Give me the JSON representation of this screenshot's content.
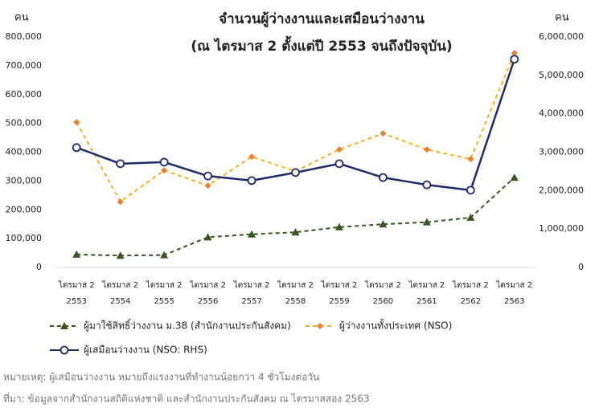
{
  "chart_data": {
    "type": "line",
    "title": "จำนวนผู้ว่างงานและเสมือนว่างงาน",
    "subtitle": "(ณ ไตรมาส 2 ตั้งแต่ปี 2553 จนถึงปัจจุบัน)",
    "y_label": "คน",
    "y2_label": "คน",
    "categories": [
      [
        "ไตรมาส 2",
        "2553"
      ],
      [
        "ไตรมาส 2",
        "2554"
      ],
      [
        "ไตรมาส 2",
        "2555"
      ],
      [
        "ไตรมาส 2",
        "2556"
      ],
      [
        "ไตรมาส 2",
        "2557"
      ],
      [
        "ไตรมาส 2",
        "2558"
      ],
      [
        "ไตรมาส 2",
        "2559"
      ],
      [
        "ไตรมาส 2",
        "2560"
      ],
      [
        "ไตรมาส 2",
        "2561"
      ],
      [
        "ไตรมาส 2",
        "2562"
      ],
      [
        "ไตรมาส 2",
        "2563"
      ]
    ],
    "ylim": [
      0,
      800000
    ],
    "yticks": [
      0,
      {
        "value": 100000,
        "label": "100,000"
      },
      {
        "value": 200000,
        "label": "200,000"
      },
      {
        "value": 300000,
        "label": "300,000"
      },
      {
        "value": 400000,
        "label": "400,000"
      },
      {
        "value": 500000,
        "label": "500,000"
      },
      {
        "value": 600000,
        "label": "600,000"
      },
      {
        "value": 700000,
        "label": "700,000"
      },
      {
        "value": 800000,
        "label": "800,000"
      }
    ],
    "y2lim": [
      0,
      6000000
    ],
    "y2ticks": [
      0,
      {
        "value": 1000000,
        "label": "1,000,000"
      },
      {
        "value": 2000000,
        "label": "2,000,000"
      },
      {
        "value": 3000000,
        "label": "3,000,000"
      },
      {
        "value": 4000000,
        "label": "4,000,000"
      },
      {
        "value": 5000000,
        "label": "5,000,000"
      },
      {
        "value": 6000000,
        "label": "6,000,000"
      }
    ],
    "grid": false,
    "series": [
      {
        "name": "ผู้มาใช้สิทธิ์ว่างงาน ม.38 (สำนักงานประกันสังคม)",
        "color": "#375623",
        "marker": "triangle",
        "dashed": true,
        "axis": "y",
        "values": [
          45000,
          41000,
          43000,
          105000,
          115000,
          122000,
          140000,
          150000,
          157000,
          173000,
          312000
        ]
      },
      {
        "name": "ผู้ว่างงานทั้งประเทศ (NSO)",
        "color": "#f4b228",
        "marker": "diamond",
        "marker_color": "#ed7d31",
        "dashed": true,
        "axis": "y",
        "values": [
          504000,
          228000,
          337000,
          284000,
          384000,
          334000,
          409000,
          465000,
          409000,
          376000,
          744000
        ]
      },
      {
        "name": "ผู้เสมือนว่างงาน (NSO: RHS)",
        "color": "#1f2a6b",
        "marker": "circle",
        "dashed": false,
        "axis": "y2",
        "values": [
          3120000,
          2700000,
          2740000,
          2380000,
          2260000,
          2470000,
          2700000,
          2340000,
          2150000,
          2010000,
          5420000
        ]
      }
    ],
    "notes": [
      "หมายเหตุ: ผู้เสมือนว่างงาน หมายถึงแรงงานที่ทำงานน้อยกว่า 4 ชั่วโมงต่อวัน",
      "ที่มา: ข้อมูลจากสำนักงานสถิติแห่งชาติ และสำนักงานประกันสังคม ณ ไตรมาสสอง 2563"
    ]
  }
}
